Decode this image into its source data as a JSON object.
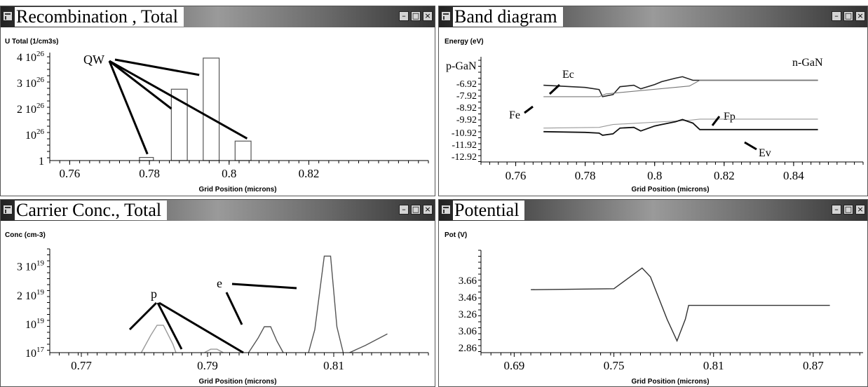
{
  "panels": {
    "recombination": {
      "title": "Recombination , Total",
      "y_axis_label": "U Total (1/cm3s)",
      "x_axis_label": "Grid Position (microns)",
      "y_ticks": [
        {
          "base": "4 10",
          "exp": "26"
        },
        {
          "base": "3 10",
          "exp": "26"
        },
        {
          "base": "2 10",
          "exp": "26"
        },
        {
          "base": "10",
          "exp": "26"
        },
        {
          "base": "1",
          "exp": ""
        }
      ],
      "x_ticks": [
        "0.76",
        "0.78",
        "0.8",
        "0.82"
      ],
      "annotation": "QW"
    },
    "band": {
      "title": "Band diagram",
      "y_axis_label": "Energy (eV)",
      "x_axis_label": "Grid Position (microns)",
      "y_ticks": [
        "-6.92",
        "-7.92",
        "-8.92",
        "-9.92",
        "-10.92",
        "-11.92",
        "-12.92"
      ],
      "x_ticks": [
        "0.76",
        "0.78",
        "0.8",
        "0.82",
        "0.84"
      ],
      "labels": {
        "p_region": "p-GaN",
        "n_region": "n-GaN",
        "ec": "Ec",
        "fe": "Fe",
        "fp": "Fp",
        "ev": "Ev"
      }
    },
    "carrier": {
      "title": "Carrier  Conc., Total",
      "y_axis_label": "Conc (cm-3)",
      "x_axis_label": "Grid Position (microns)",
      "y_ticks": [
        {
          "base": "3 10",
          "exp": "19"
        },
        {
          "base": "2 10",
          "exp": "19"
        },
        {
          "base": "10",
          "exp": "19"
        },
        {
          "base": "10",
          "exp": "17"
        }
      ],
      "x_ticks": [
        "0.77",
        "0.79",
        "0.81"
      ],
      "labels": {
        "p": "p",
        "e": "e"
      }
    },
    "potential": {
      "title": "Potential",
      "y_axis_label": "Pot (V)",
      "x_axis_label": "Grid Position (microns)",
      "y_ticks": [
        "3.66",
        "3.46",
        "3.26",
        "3.06",
        "2.86"
      ],
      "x_ticks": [
        "0.69",
        "0.75",
        "0.81",
        "0.87"
      ]
    }
  },
  "window_buttons": {
    "minimize": "–",
    "maximize": "□",
    "close": "×"
  },
  "chart_data": [
    {
      "type": "bar",
      "title": "Recombination , Total",
      "ylabel": "U Total (1/cm3s)",
      "xlabel": "Grid Position (microns)",
      "xlim": [
        0.755,
        0.85
      ],
      "ylim": [
        0,
        4
      ],
      "bars": [
        {
          "x0": 0.7775,
          "x1": 0.781,
          "value": 0.12
        },
        {
          "x0": 0.7855,
          "x1": 0.7895,
          "value": 2.75
        },
        {
          "x0": 0.7935,
          "x1": 0.7975,
          "value": 3.95
        },
        {
          "x0": 0.8015,
          "x1": 0.8055,
          "value": 0.75
        }
      ]
    },
    {
      "type": "line",
      "title": "Band diagram",
      "ylabel": "Energy (eV)",
      "xlabel": "Grid Position (microns)",
      "xlim": [
        0.75,
        0.86
      ],
      "ylim": [
        -12.92,
        -5.8
      ],
      "series": [
        {
          "name": "Ec",
          "x": [
            0.768,
            0.78,
            0.784,
            0.785,
            0.788,
            0.79,
            0.794,
            0.796,
            0.8,
            0.802,
            0.806,
            0.808,
            0.811,
            0.813,
            0.847
          ],
          "y": [
            -7.55,
            -7.7,
            -7.85,
            -8.35,
            -8.2,
            -7.65,
            -7.55,
            -7.8,
            -7.5,
            -7.3,
            -7.05,
            -6.95,
            -7.2,
            -7.2,
            -7.2
          ]
        },
        {
          "name": "Fe",
          "x": [
            0.768,
            0.784,
            0.786,
            0.81,
            0.813,
            0.847
          ],
          "y": [
            -8.35,
            -8.35,
            -8.15,
            -7.6,
            -7.2,
            -7.2
          ]
        },
        {
          "name": "Fp",
          "x": [
            0.768,
            0.784,
            0.788,
            0.81,
            0.813,
            0.847
          ],
          "y": [
            -10.55,
            -10.5,
            -10.3,
            -10.0,
            -9.92,
            -9.92
          ]
        },
        {
          "name": "Ev",
          "x": [
            0.768,
            0.78,
            0.784,
            0.785,
            0.788,
            0.79,
            0.794,
            0.796,
            0.8,
            0.802,
            0.806,
            0.808,
            0.811,
            0.813,
            0.847
          ],
          "y": [
            -10.8,
            -10.85,
            -10.9,
            -11.05,
            -10.95,
            -10.55,
            -10.5,
            -10.75,
            -10.4,
            -10.3,
            -10.1,
            -9.95,
            -10.2,
            -10.65,
            -10.65
          ]
        }
      ]
    },
    {
      "type": "line",
      "title": "Carrier  Conc., Total",
      "ylabel": "Conc (cm-3)",
      "xlabel": "Grid Position (microns)",
      "xlim": [
        0.765,
        0.825
      ],
      "ylim": [
        0,
        3.6
      ],
      "series": [
        {
          "name": "p",
          "x": [
            0.7795,
            0.781,
            0.782,
            0.783,
            0.7845,
            0.785
          ],
          "y": [
            0.0,
            0.6,
            0.95,
            0.95,
            0.3,
            0.0
          ]
        },
        {
          "name": "p",
          "x": [
            0.7895,
            0.7905,
            0.7915,
            0.7925
          ],
          "y": [
            0.0,
            0.12,
            0.12,
            0.0
          ]
        },
        {
          "name": "e",
          "x": [
            0.7965,
            0.798,
            0.799,
            0.8,
            0.801,
            0.802
          ],
          "y": [
            0.0,
            0.5,
            0.9,
            0.9,
            0.4,
            0.0
          ]
        },
        {
          "name": "e",
          "x": [
            0.806,
            0.807,
            0.8085,
            0.8095,
            0.8105,
            0.8115
          ],
          "y": [
            0.0,
            0.8,
            3.35,
            3.35,
            0.9,
            0.0
          ]
        },
        {
          "x": [
            0.8125,
            0.815,
            0.8185
          ],
          "y": [
            0.0,
            0.25,
            0.65
          ]
        }
      ]
    },
    {
      "type": "line",
      "title": "Potential",
      "ylabel": "Pot (V)",
      "xlabel": "Grid Position (microns)",
      "xlim": [
        0.67,
        0.9
      ],
      "ylim": [
        2.86,
        3.9
      ],
      "series": [
        {
          "x": [
            0.7,
            0.75,
            0.767,
            0.772,
            0.782,
            0.788,
            0.793,
            0.795,
            0.798,
            0.88
          ],
          "y": [
            3.5,
            3.51,
            3.72,
            3.63,
            3.2,
            2.98,
            3.2,
            3.34,
            3.34,
            3.34
          ]
        }
      ]
    }
  ]
}
